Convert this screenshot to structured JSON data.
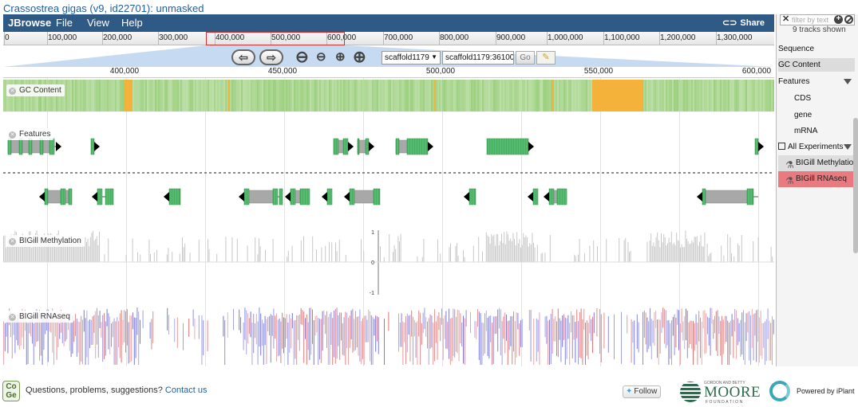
{
  "window": {
    "title": "Crassostrea gigas (v9, id22701): unmasked"
  },
  "menubar": {
    "brand": "JBrowse",
    "menus": [
      "File",
      "View",
      "Help"
    ],
    "share_label": "Share",
    "share_icon": "link-icon"
  },
  "overview": {
    "ticks": [
      "0",
      "100,000",
      "200,000",
      "300,000",
      "400,000",
      "500,000",
      "600,000",
      "700,000",
      "800,000",
      "900,000",
      "1,000,000",
      "1,100,000",
      "1,200,000",
      "1,300,000"
    ]
  },
  "navigation": {
    "back_icon": "arrow-left-icon",
    "forward_icon": "arrow-right-icon",
    "zoom_icons": [
      "zoom-out-large-icon",
      "zoom-out-small-icon",
      "zoom-in-small-icon",
      "zoom-in-large-icon"
    ],
    "ref_seq": "scaffold1179",
    "location": "scaffold1179:36100",
    "go_label": "Go",
    "highlight_icon": "highlighter-icon"
  },
  "ruler": {
    "ticks": [
      "400,000",
      "450,000",
      "500,000",
      "550,000",
      "600,000"
    ]
  },
  "tracks": {
    "gc_content": {
      "label": "GC Content"
    },
    "features": {
      "label": "Features"
    },
    "methylation": {
      "label": "BIGill Methylation",
      "axis": [
        "1",
        "0",
        "-1"
      ]
    },
    "rnaseq": {
      "label": "BIGill RNAseq"
    }
  },
  "colors": {
    "gc_normal": "#9ccf7e",
    "gc_high": "#f4b23a",
    "feature_green": "#45b060",
    "utr_gray": "#a8a8a8",
    "methylation": "#c8c8c8",
    "rnaseq_red": "#e07070",
    "rnaseq_blue": "#6f6fd8",
    "menubar": "#2f5a86"
  },
  "sidebar": {
    "filter_placeholder": "filter by text",
    "tracks_shown": "9 tracks shown",
    "items": [
      {
        "label": "Sequence"
      },
      {
        "label": "GC Content"
      },
      {
        "label": "Features"
      },
      {
        "label": "CDS"
      },
      {
        "label": "gene"
      },
      {
        "label": "mRNA"
      },
      {
        "label": "All Experiments"
      }
    ],
    "experiments": [
      {
        "label": "BIGill Methylation"
      },
      {
        "label": "BIGill RNAseq"
      }
    ]
  },
  "footer": {
    "logo_text": "Co Ge",
    "question": "Questions, problems, suggestions?",
    "contact": "Contact us",
    "follow": "Follow",
    "moore_small": "GORDON AND BETTY",
    "moore": "MOORE",
    "foundation": "FOUNDATION",
    "iplant": "Powered by iPlant"
  }
}
